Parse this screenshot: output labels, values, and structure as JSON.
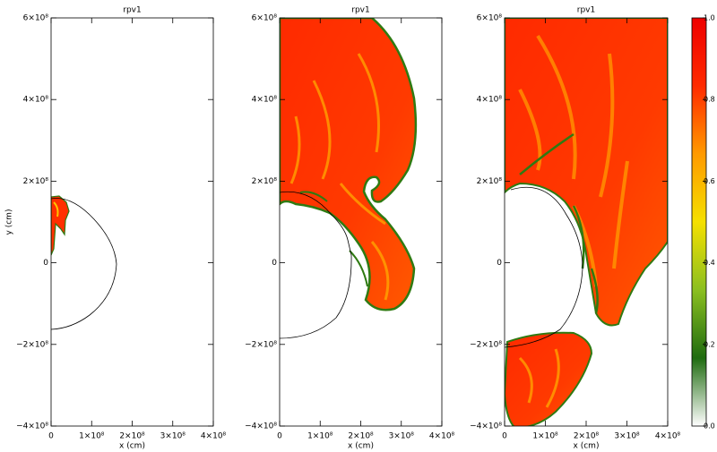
{
  "chart_data": [
    {
      "type": "field",
      "title": "rpv1",
      "xlabel": "x (cm)",
      "ylabel": "y (cm)",
      "xlim": [
        0,
        400000000
      ],
      "ylim": [
        -400000000,
        600000000
      ],
      "xticks": [
        0,
        {
          "value": 100000000,
          "label": "1×10⁸"
        },
        {
          "value": 200000000,
          "label": "2×10⁸"
        },
        {
          "value": 300000000,
          "label": "3×10⁸"
        },
        {
          "value": 400000000,
          "label": "4×10⁸"
        }
      ],
      "yticks": [
        {
          "value": -400000000,
          "label": "−4×10⁸"
        },
        {
          "value": -200000000,
          "label": "−2×10⁸"
        },
        0,
        {
          "value": 200000000,
          "label": "2×10⁸"
        },
        {
          "value": 400000000,
          "label": "4×10⁸"
        },
        {
          "value": 600000000,
          "label": "6×10⁸"
        }
      ]
    },
    {
      "type": "field",
      "title": "rpv1",
      "xlabel": "x (cm)",
      "xlim": [
        0,
        400000000
      ],
      "ylim": [
        -400000000,
        600000000
      ],
      "xticks": [
        0,
        {
          "value": 100000000,
          "label": "1×10⁸"
        },
        {
          "value": 200000000,
          "label": "2×10⁸"
        },
        {
          "value": 300000000,
          "label": "3×10⁸"
        },
        {
          "value": 400000000,
          "label": "4×10⁸"
        }
      ],
      "yticks": [
        {
          "value": -400000000,
          "label": "−4×10⁸"
        },
        {
          "value": -200000000,
          "label": "−2×10⁸"
        },
        0,
        {
          "value": 200000000,
          "label": "2×10⁸"
        },
        {
          "value": 400000000,
          "label": "4×10⁸"
        },
        {
          "value": 600000000,
          "label": "6×10⁸"
        }
      ]
    },
    {
      "type": "field",
      "title": "rpv1",
      "xlabel": "x (cm)",
      "xlim": [
        0,
        400000000
      ],
      "ylim": [
        -400000000,
        600000000
      ],
      "xticks": [
        0,
        {
          "value": 100000000,
          "label": "1×10⁸"
        },
        {
          "value": 200000000,
          "label": "2×10⁸"
        },
        {
          "value": 300000000,
          "label": "3×10⁸"
        },
        {
          "value": 400000000,
          "label": "4×10⁸"
        }
      ],
      "yticks": [
        {
          "value": -400000000,
          "label": "−4×10⁸"
        },
        {
          "value": -200000000,
          "label": "−2×10⁸"
        },
        0,
        {
          "value": 200000000,
          "label": "2×10⁸"
        },
        {
          "value": 400000000,
          "label": "4×10⁸"
        },
        {
          "value": 600000000,
          "label": "6×10⁸"
        }
      ]
    },
    {
      "type": "colorbar",
      "colors": [
        "#ffffff",
        "#1f6b10",
        "#8bbf20",
        "#f5e000",
        "#ff9a00",
        "#ff2a00",
        "#ee0000"
      ],
      "ylim": [
        0,
        1
      ],
      "yticks": [
        {
          "value": 0,
          "label": "0.0"
        },
        {
          "value": 0.2,
          "label": "0.2"
        },
        {
          "value": 0.4,
          "label": "0.4"
        },
        {
          "value": 0.6,
          "label": "0.6"
        },
        {
          "value": 0.8,
          "label": "0.8"
        },
        {
          "value": 1,
          "label": "1.0"
        }
      ]
    }
  ]
}
